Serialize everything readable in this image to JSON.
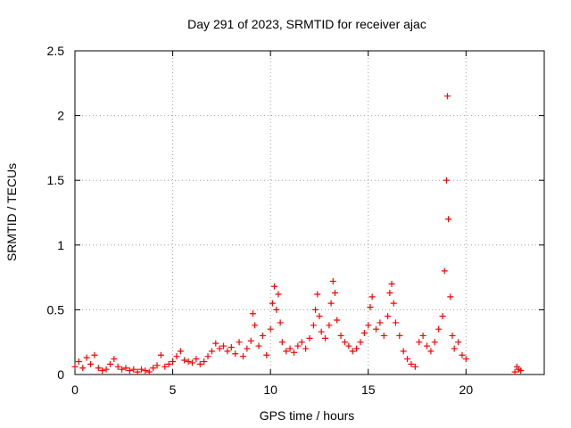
{
  "chart_data": {
    "type": "scatter",
    "title": "Day 291 of 2023, SRMTID for receiver ajac",
    "xlabel": "GPS time / hours",
    "ylabel": "SRMTID / TECUs",
    "xlim": [
      0,
      24
    ],
    "ylim": [
      0,
      2.5
    ],
    "xticks": [
      0,
      5,
      10,
      15,
      20
    ],
    "yticks": [
      0,
      0.5,
      1,
      1.5,
      2,
      2.5
    ],
    "xtick_labels": [
      "0",
      "5",
      "10",
      "15",
      "20"
    ],
    "ytick_labels": [
      "0",
      "0.5",
      "1",
      "1.5",
      "2",
      "2.5"
    ],
    "grid": true,
    "marker": "+",
    "series": [
      {
        "name": "SRMTID",
        "color": "#ff0000",
        "points": [
          [
            0.0,
            0.06
          ],
          [
            0.2,
            0.1
          ],
          [
            0.4,
            0.05
          ],
          [
            0.6,
            0.13
          ],
          [
            0.8,
            0.08
          ],
          [
            1.0,
            0.15
          ],
          [
            1.2,
            0.05
          ],
          [
            1.4,
            0.03
          ],
          [
            1.6,
            0.04
          ],
          [
            1.8,
            0.08
          ],
          [
            2.0,
            0.12
          ],
          [
            2.2,
            0.06
          ],
          [
            2.4,
            0.04
          ],
          [
            2.6,
            0.05
          ],
          [
            2.8,
            0.03
          ],
          [
            3.0,
            0.04
          ],
          [
            3.2,
            0.02
          ],
          [
            3.4,
            0.04
          ],
          [
            3.6,
            0.03
          ],
          [
            3.8,
            0.02
          ],
          [
            4.0,
            0.05
          ],
          [
            4.2,
            0.07
          ],
          [
            4.4,
            0.15
          ],
          [
            4.6,
            0.06
          ],
          [
            4.8,
            0.08
          ],
          [
            5.0,
            0.1
          ],
          [
            5.2,
            0.14
          ],
          [
            5.4,
            0.18
          ],
          [
            5.6,
            0.11
          ],
          [
            5.8,
            0.1
          ],
          [
            6.0,
            0.09
          ],
          [
            6.2,
            0.12
          ],
          [
            6.4,
            0.08
          ],
          [
            6.6,
            0.1
          ],
          [
            6.8,
            0.14
          ],
          [
            7.0,
            0.18
          ],
          [
            7.2,
            0.24
          ],
          [
            7.4,
            0.2
          ],
          [
            7.6,
            0.22
          ],
          [
            7.8,
            0.18
          ],
          [
            8.0,
            0.21
          ],
          [
            8.2,
            0.16
          ],
          [
            8.4,
            0.25
          ],
          [
            8.6,
            0.14
          ],
          [
            8.8,
            0.2
          ],
          [
            9.0,
            0.26
          ],
          [
            9.1,
            0.47
          ],
          [
            9.2,
            0.38
          ],
          [
            9.4,
            0.22
          ],
          [
            9.6,
            0.3
          ],
          [
            9.8,
            0.15
          ],
          [
            10.0,
            0.35
          ],
          [
            10.1,
            0.55
          ],
          [
            10.2,
            0.68
          ],
          [
            10.3,
            0.5
          ],
          [
            10.4,
            0.62
          ],
          [
            10.5,
            0.4
          ],
          [
            10.6,
            0.25
          ],
          [
            10.8,
            0.18
          ],
          [
            11.0,
            0.2
          ],
          [
            11.2,
            0.17
          ],
          [
            11.4,
            0.22
          ],
          [
            11.6,
            0.25
          ],
          [
            11.8,
            0.2
          ],
          [
            12.0,
            0.28
          ],
          [
            12.2,
            0.38
          ],
          [
            12.3,
            0.5
          ],
          [
            12.4,
            0.62
          ],
          [
            12.5,
            0.45
          ],
          [
            12.6,
            0.33
          ],
          [
            12.8,
            0.28
          ],
          [
            13.0,
            0.38
          ],
          [
            13.1,
            0.55
          ],
          [
            13.2,
            0.72
          ],
          [
            13.3,
            0.63
          ],
          [
            13.4,
            0.42
          ],
          [
            13.6,
            0.3
          ],
          [
            13.8,
            0.25
          ],
          [
            14.0,
            0.22
          ],
          [
            14.2,
            0.18
          ],
          [
            14.4,
            0.2
          ],
          [
            14.6,
            0.25
          ],
          [
            14.8,
            0.32
          ],
          [
            15.0,
            0.38
          ],
          [
            15.1,
            0.52
          ],
          [
            15.2,
            0.6
          ],
          [
            15.4,
            0.35
          ],
          [
            15.6,
            0.4
          ],
          [
            15.8,
            0.3
          ],
          [
            16.0,
            0.45
          ],
          [
            16.1,
            0.63
          ],
          [
            16.2,
            0.7
          ],
          [
            16.3,
            0.55
          ],
          [
            16.4,
            0.4
          ],
          [
            16.6,
            0.3
          ],
          [
            16.8,
            0.18
          ],
          [
            17.0,
            0.12
          ],
          [
            17.2,
            0.08
          ],
          [
            17.4,
            0.06
          ],
          [
            17.6,
            0.25
          ],
          [
            17.8,
            0.3
          ],
          [
            18.0,
            0.22
          ],
          [
            18.2,
            0.18
          ],
          [
            18.4,
            0.25
          ],
          [
            18.6,
            0.35
          ],
          [
            18.8,
            0.45
          ],
          [
            18.9,
            0.8
          ],
          [
            19.0,
            1.5
          ],
          [
            19.05,
            2.15
          ],
          [
            19.1,
            1.2
          ],
          [
            19.2,
            0.6
          ],
          [
            19.3,
            0.3
          ],
          [
            19.4,
            0.2
          ],
          [
            19.6,
            0.25
          ],
          [
            19.8,
            0.15
          ],
          [
            20.0,
            0.12
          ],
          [
            22.5,
            0.02
          ],
          [
            22.6,
            0.06
          ],
          [
            22.7,
            0.04
          ],
          [
            22.8,
            0.03
          ]
        ]
      }
    ]
  }
}
